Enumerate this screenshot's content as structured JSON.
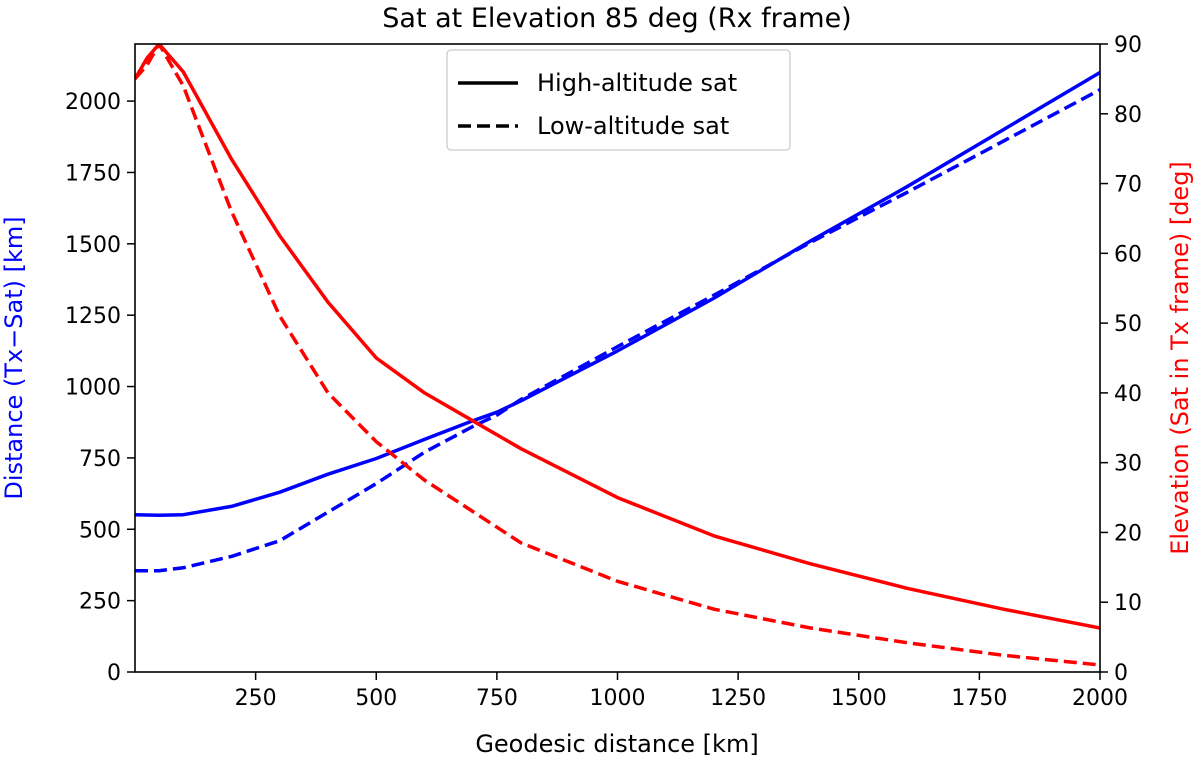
{
  "chart_data": {
    "type": "line",
    "title": "Sat at Elevation 85 deg (Rx frame)",
    "xlabel": "Geodesic distance [km]",
    "ylabel_left": "Distance (Tx−Sat) [km]",
    "ylabel_right": "Elevation (Sat in Tx frame) [deg]",
    "xlim": [
      0,
      2000
    ],
    "ylim_left": [
      0,
      2200
    ],
    "ylim_right": [
      0,
      90
    ],
    "x_ticks": [
      250,
      500,
      750,
      1000,
      1250,
      1500,
      1750,
      2000
    ],
    "y_left_ticks": [
      0,
      250,
      500,
      750,
      1000,
      1250,
      1500,
      1750,
      2000
    ],
    "y_right_ticks": [
      0,
      10,
      20,
      30,
      40,
      50,
      60,
      70,
      80,
      90
    ],
    "grid": false,
    "legend_position": "top-center",
    "legend": [
      {
        "label": "High-altitude sat",
        "style": "solid"
      },
      {
        "label": "Low-altitude sat",
        "style": "dashed"
      }
    ],
    "colors": {
      "left_axis": "#0000ff",
      "right_axis": "#ff0000"
    },
    "series": [
      {
        "name": "High-altitude sat distance",
        "axis": "left",
        "color": "#0000ff",
        "style": "solid",
        "x": [
          0,
          50,
          100,
          200,
          300,
          400,
          500,
          600,
          700,
          750,
          800,
          1000,
          1200,
          1400,
          1600,
          1800,
          2000
        ],
        "y": [
          551,
          549,
          551,
          580,
          630,
          693,
          748,
          815,
          880,
          910,
          950,
          1125,
          1310,
          1510,
          1700,
          1900,
          2100
        ]
      },
      {
        "name": "Low-altitude sat distance",
        "axis": "left",
        "color": "#0000ff",
        "style": "dashed",
        "x": [
          0,
          50,
          100,
          200,
          300,
          400,
          500,
          600,
          700,
          750,
          800,
          1000,
          1200,
          1400,
          1600,
          1800,
          2000
        ],
        "y": [
          355,
          355,
          365,
          405,
          460,
          560,
          660,
          770,
          860,
          900,
          955,
          1140,
          1320,
          1505,
          1680,
          1860,
          2040
        ]
      },
      {
        "name": "High-altitude sat elevation",
        "axis": "right",
        "color": "#ff0000",
        "style": "solid",
        "x": [
          0,
          25,
          50,
          100,
          200,
          300,
          400,
          500,
          600,
          700,
          800,
          1000,
          1200,
          1400,
          1600,
          1800,
          2000
        ],
        "y": [
          85,
          88,
          90,
          86,
          73.5,
          62.5,
          53,
          45,
          40,
          36,
          32,
          25,
          19.5,
          15.5,
          12,
          9,
          6.3
        ]
      },
      {
        "name": "Low-altitude sat elevation",
        "axis": "right",
        "color": "#ff0000",
        "style": "dashed",
        "x": [
          0,
          25,
          50,
          100,
          200,
          300,
          400,
          500,
          600,
          700,
          800,
          1000,
          1200,
          1400,
          1600,
          1800,
          2000
        ],
        "y": [
          85,
          87,
          90,
          84,
          66,
          51,
          40,
          33,
          27.5,
          23,
          18.5,
          13,
          9,
          6.3,
          4.2,
          2.4,
          1
        ]
      }
    ]
  }
}
